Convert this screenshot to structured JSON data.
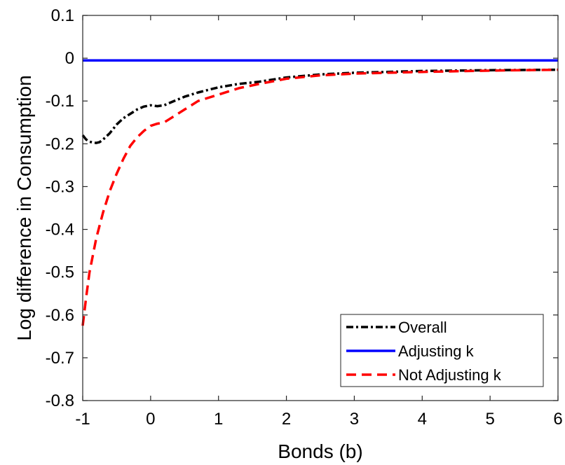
{
  "chart_data": {
    "type": "line",
    "title": "",
    "xlabel": "Bonds (b)",
    "ylabel": "Log difference in Consumption",
    "xlim": [
      -1,
      6
    ],
    "ylim": [
      -0.8,
      0.1
    ],
    "xticks": [
      -1,
      0,
      1,
      2,
      3,
      4,
      5,
      6
    ],
    "yticks": [
      0.1,
      0,
      -0.1,
      -0.2,
      -0.3,
      -0.4,
      -0.5,
      -0.6,
      -0.7,
      -0.8
    ],
    "xtick_labels": [
      "-1",
      "0",
      "1",
      "2",
      "3",
      "4",
      "5",
      "6"
    ],
    "ytick_labels": [
      "0.1",
      "0",
      "-0.1",
      "-0.2",
      "-0.3",
      "-0.4",
      "-0.5",
      "-0.6",
      "-0.7",
      "-0.8"
    ],
    "grid": false,
    "legend_position": "bottom-right",
    "series": [
      {
        "name": "Overall",
        "color": "#000000",
        "style": "dashdot",
        "x": [
          -1.0,
          -0.95,
          -0.9,
          -0.85,
          -0.8,
          -0.75,
          -0.7,
          -0.6,
          -0.5,
          -0.4,
          -0.3,
          -0.2,
          -0.1,
          0.0,
          0.1,
          0.2,
          0.3,
          0.5,
          0.7,
          1.0,
          1.3,
          1.6,
          2.0,
          2.5,
          3.0,
          4.0,
          5.0,
          6.0
        ],
        "y": [
          -0.18,
          -0.19,
          -0.195,
          -0.197,
          -0.198,
          -0.196,
          -0.19,
          -0.175,
          -0.155,
          -0.14,
          -0.13,
          -0.12,
          -0.113,
          -0.11,
          -0.112,
          -0.11,
          -0.103,
          -0.09,
          -0.08,
          -0.068,
          -0.06,
          -0.055,
          -0.045,
          -0.038,
          -0.034,
          -0.03,
          -0.028,
          -0.027
        ]
      },
      {
        "name": "Adjusting k",
        "color": "#0000ff",
        "style": "solid",
        "x": [
          -1.0,
          0.0,
          1.0,
          2.0,
          3.0,
          4.0,
          5.0,
          6.0
        ],
        "y": [
          -0.005,
          -0.005,
          -0.005,
          -0.005,
          -0.005,
          -0.005,
          -0.005,
          -0.005
        ]
      },
      {
        "name": "Not Adjusting k",
        "color": "#ff0000",
        "style": "dashed",
        "x": [
          -1.0,
          -0.95,
          -0.9,
          -0.8,
          -0.7,
          -0.6,
          -0.5,
          -0.4,
          -0.3,
          -0.2,
          -0.1,
          0.0,
          0.1,
          0.2,
          0.3,
          0.5,
          0.7,
          1.0,
          1.3,
          1.6,
          2.0,
          2.5,
          3.0,
          4.0,
          5.0,
          6.0
        ],
        "y": [
          -0.625,
          -0.56,
          -0.5,
          -0.42,
          -0.36,
          -0.31,
          -0.27,
          -0.235,
          -0.205,
          -0.185,
          -0.17,
          -0.158,
          -0.153,
          -0.15,
          -0.14,
          -0.12,
          -0.1,
          -0.085,
          -0.07,
          -0.06,
          -0.048,
          -0.04,
          -0.036,
          -0.032,
          -0.029,
          -0.027
        ]
      }
    ]
  }
}
